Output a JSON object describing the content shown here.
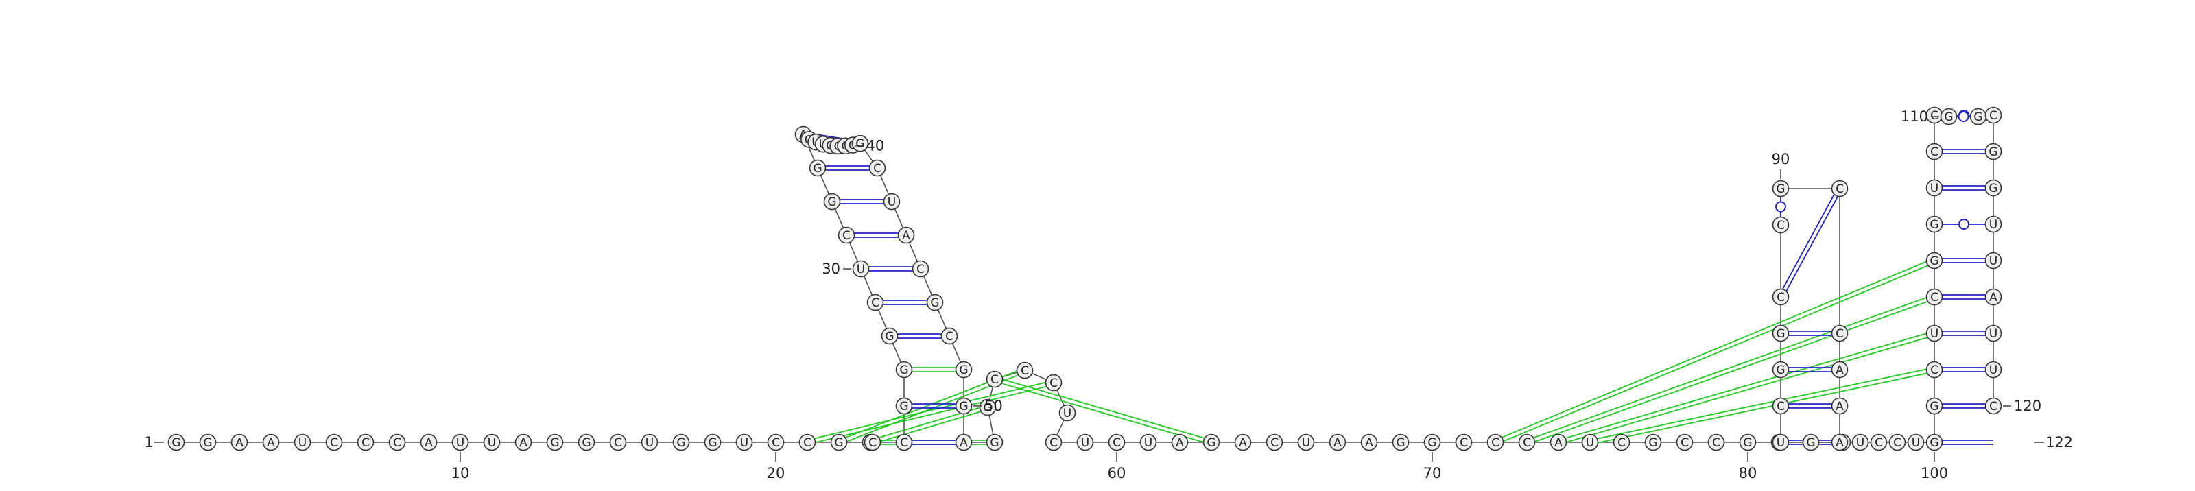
{
  "sequence": "GGAAUCCCAUUAGGCUGGUCCGCCCGGGCUCGGAGUUGCCGGCUACGCGGAGGCCCUCUCUAGACUAAGGCCCAUCGCCGGGUUCGGCCGCCAAAUCCUGGCUCGGUCCGGCGGUUAUUC",
  "sequence_length": 122,
  "labels": {
    "start": "1",
    "end": "122",
    "ticks": [
      "10",
      "20",
      "30",
      "40",
      "50",
      "60",
      "70",
      "80",
      "90",
      "100",
      "110",
      "120"
    ]
  },
  "pairs": {
    "canonical": [
      [
        25,
        51
      ],
      [
        26,
        50
      ],
      [
        28,
        48
      ],
      [
        29,
        47
      ],
      [
        30,
        46
      ],
      [
        31,
        45
      ],
      [
        32,
        44
      ],
      [
        33,
        43
      ],
      [
        34,
        42
      ],
      [
        84,
        95
      ],
      [
        85,
        94
      ],
      [
        86,
        93
      ],
      [
        87,
        92
      ],
      [
        88,
        91
      ],
      [
        100,
        121
      ],
      [
        101,
        120
      ],
      [
        102,
        119
      ],
      [
        103,
        118
      ],
      [
        104,
        117
      ],
      [
        105,
        116
      ],
      [
        107,
        114
      ],
      [
        108,
        113
      ]
    ],
    "wobble": [
      [
        89,
        90
      ],
      [
        106,
        115
      ],
      [
        109,
        112
      ],
      [
        110,
        111
      ]
    ],
    "pseudoknot": [
      [
        24,
        52
      ],
      [
        23,
        53
      ],
      [
        22,
        55
      ],
      [
        21,
        56
      ],
      [
        27,
        49
      ],
      [
        54,
        63
      ],
      [
        72,
        105
      ],
      [
        73,
        104
      ],
      [
        74,
        103
      ],
      [
        75,
        102
      ]
    ]
  },
  "colors": {
    "backbone": "#555555",
    "nucleotide_fill": "#eeeeee",
    "nucleotide_stroke": "#333333",
    "canonical_pair": "#2222cc",
    "wobble_pair": "#2222cc",
    "pseudoknot_pair": "#22cc22"
  }
}
